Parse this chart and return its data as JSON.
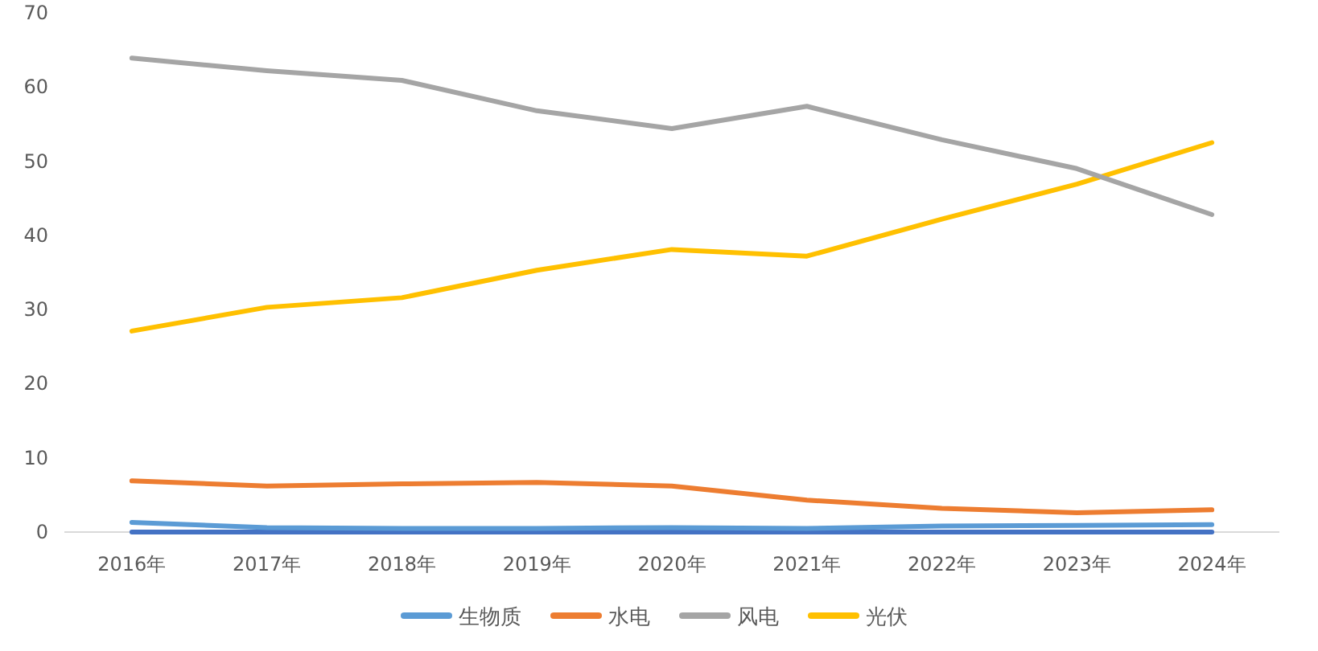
{
  "chart_data": {
    "type": "line",
    "categories": [
      "2016年",
      "2017年",
      "2018年",
      "2019年",
      "2020年",
      "2021年",
      "2022年",
      "2023年",
      "2024年"
    ],
    "series": [
      {
        "name": "生物质",
        "color": "#5b9bd5",
        "values": [
          1.3,
          0.6,
          0.5,
          0.5,
          0.6,
          0.5,
          0.8,
          0.9,
          1.0
        ]
      },
      {
        "name": "水电",
        "color": "#ed7d31",
        "values": [
          6.9,
          6.2,
          6.5,
          6.7,
          6.2,
          4.3,
          3.2,
          2.6,
          3.0
        ]
      },
      {
        "name": "风电",
        "color": "#a5a5a5",
        "values": [
          63.9,
          62.2,
          60.9,
          56.8,
          54.4,
          57.4,
          52.9,
          49.0,
          42.8
        ]
      },
      {
        "name": "光伏",
        "color": "#ffc000",
        "values": [
          27.1,
          30.3,
          31.6,
          35.3,
          38.1,
          37.2,
          42.2,
          46.9,
          52.5
        ]
      },
      {
        "color": "#4472c4",
        "values": [
          0,
          0,
          0,
          0,
          0,
          0,
          0,
          0,
          0
        ]
      }
    ],
    "ylim": [
      0,
      70
    ],
    "yticks": [
      0,
      10,
      20,
      30,
      40,
      50,
      60,
      70
    ],
    "grid": false,
    "legend": "bottom"
  }
}
